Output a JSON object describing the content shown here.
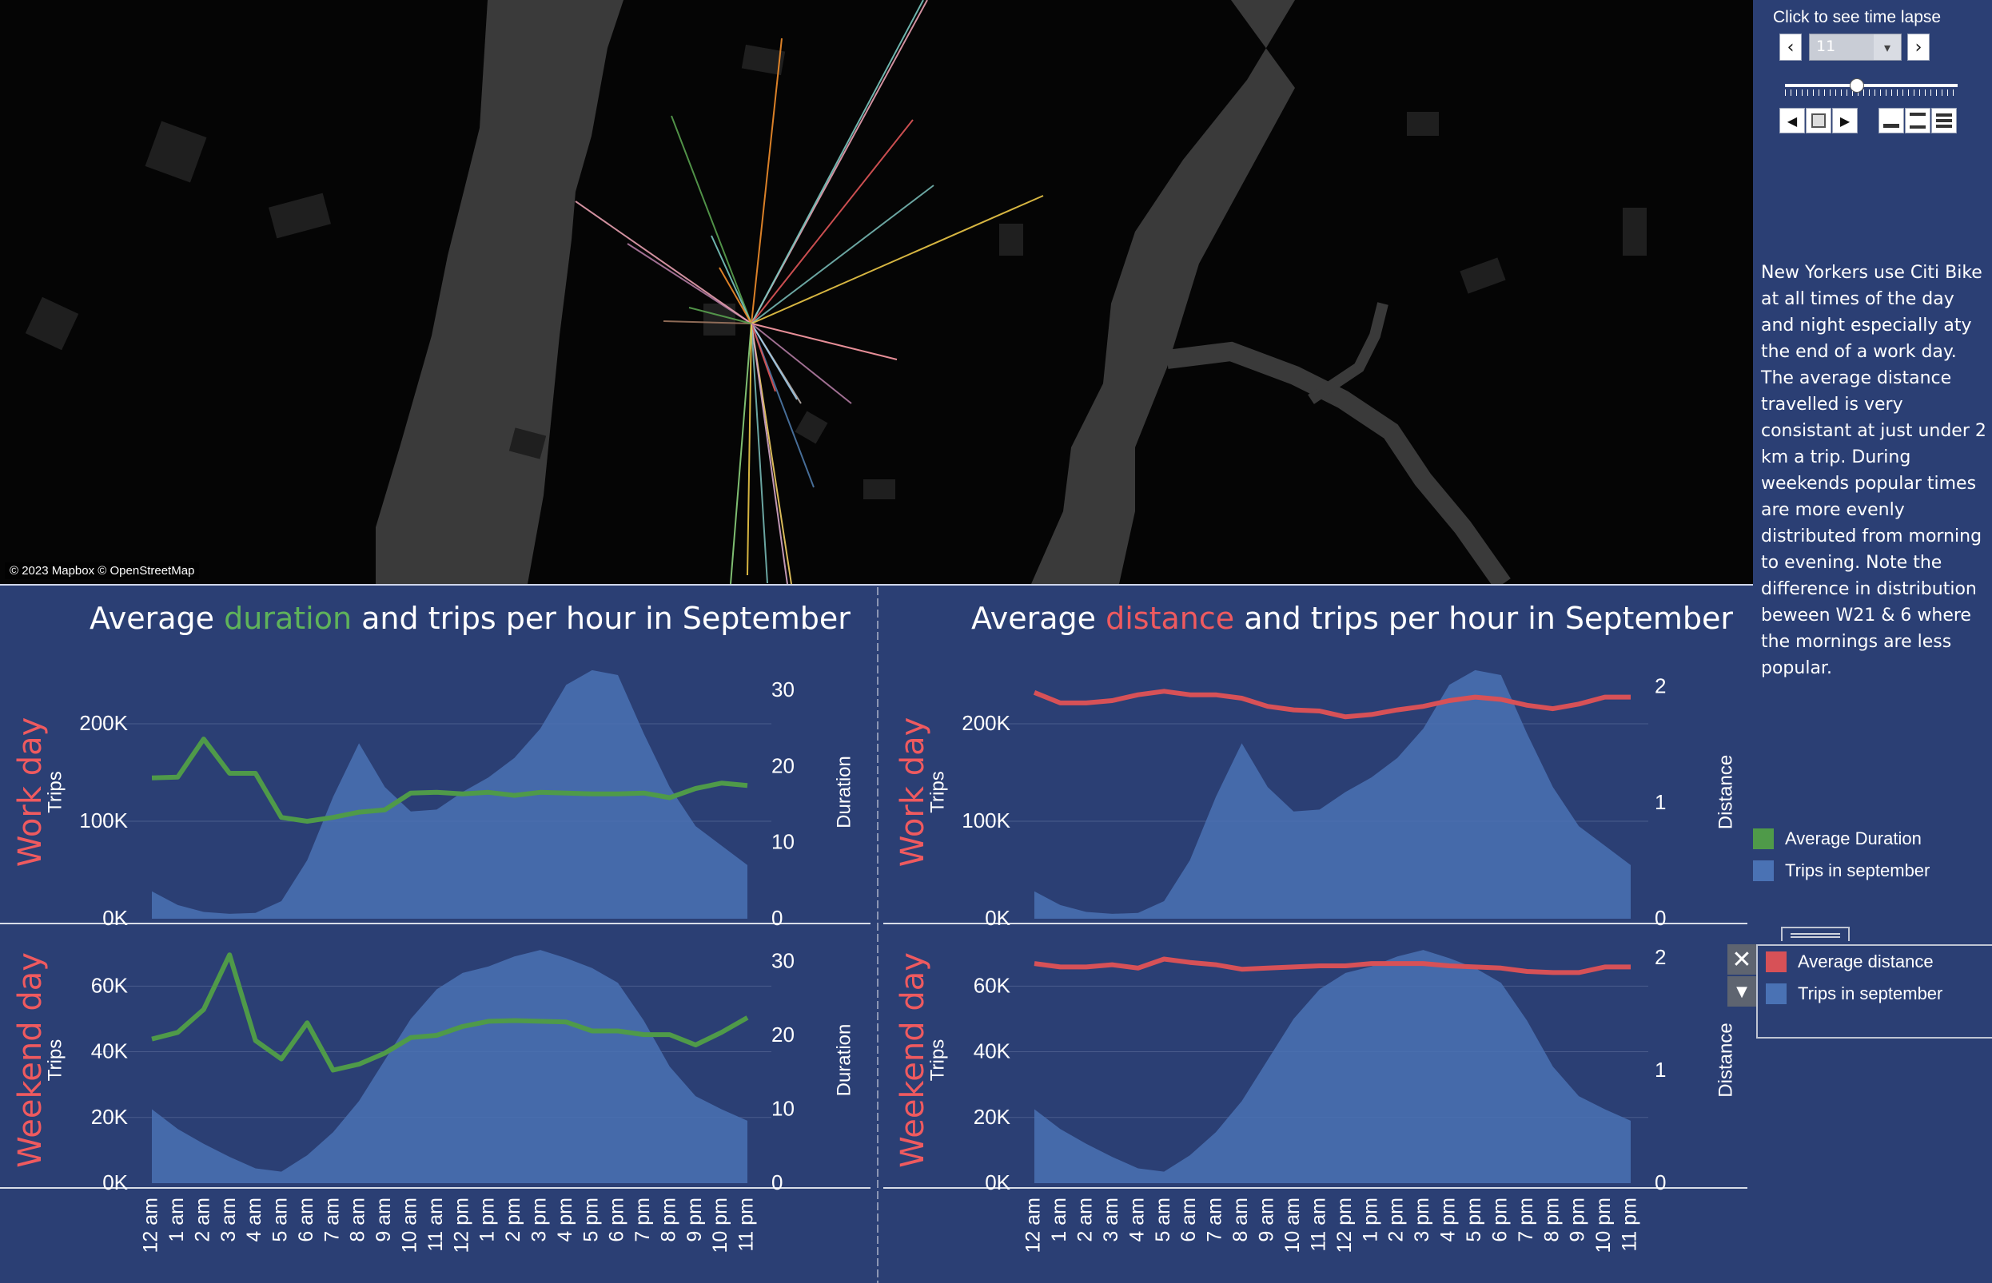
{
  "map": {
    "credit": "© 2023 Mapbox © OpenStreetMap",
    "line_colors": [
      "#e8a0b0",
      "#7ac8c0",
      "#f28e2b",
      "#59a14f",
      "#e15759",
      "#76b7b2",
      "#edc948",
      "#b07aa1",
      "#ff9da7",
      "#9c755f",
      "#bab0ac",
      "#4e79a7",
      "#a0cbe8",
      "#8cd17d",
      "#f1ce63",
      "#d4a6c8"
    ]
  },
  "timelapse": {
    "title": "Click to see time lapse",
    "selected_value": "11",
    "prev_icon": "chevron-left-icon",
    "next_icon": "chevron-right-icon",
    "slider_fraction": 0.5,
    "controls": [
      "step-back-icon",
      "stop-icon",
      "play-icon",
      "speed-slow-icon",
      "speed-medium-icon",
      "speed-fast-icon"
    ]
  },
  "story_text": "New Yorkers use Citi Bike at all times of the day and night especially aty the end of a work day. The average distance travelled is very consistant at just under 2 km a trip. During weekends popular times are more evenly distributed from morning to evening. Note the difference in distribution beween W21 & 6 where the mornings are less popular.",
  "legend_duration": {
    "items": [
      {
        "label": "Average Duration",
        "color": "#4f9a49"
      },
      {
        "label": "Trips in september",
        "color": "#4a72b4"
      }
    ]
  },
  "legend_distance": {
    "items": [
      {
        "label": "Average distance",
        "color": "#d75157"
      },
      {
        "label": "Trips in september",
        "color": "#4a72b4"
      }
    ],
    "close_icon": "close-icon",
    "menu_icon": "caret-down-icon"
  },
  "panels": {
    "left": {
      "title_pre": "Average ",
      "title_hl": "duration",
      "title_post": " and trips per hour in September"
    },
    "right": {
      "title_pre": "Average ",
      "title_hl": "distance",
      "title_post": " and trips per hour in September"
    }
  },
  "chart_data": [
    {
      "type": "area",
      "title": "Average duration and trips per hour in September",
      "row_label": "Work day",
      "ylabel": "Trips",
      "y2label": "Duration",
      "x": [
        "12 am",
        "1 am",
        "2 am",
        "3 am",
        "4 am",
        "5 am",
        "6 am",
        "7 am",
        "8 am",
        "9 am",
        "10 am",
        "11 am",
        "12 pm",
        "1 pm",
        "2 pm",
        "3 pm",
        "4 pm",
        "5 pm",
        "6 pm",
        "7 pm",
        "8 pm",
        "9 pm",
        "10 pm",
        "11 pm"
      ],
      "ylim": [
        0,
        250000
      ],
      "yticks": [
        "0K",
        "100K",
        "200K"
      ],
      "y2lim": [
        0,
        32
      ],
      "y2ticks": [
        "0",
        "10",
        "20",
        "30"
      ],
      "series": [
        {
          "name": "Trips in september",
          "color": "#4a72b4",
          "values": [
            28000,
            14000,
            7000,
            5000,
            6000,
            18000,
            60000,
            125000,
            180000,
            135000,
            110000,
            112000,
            130000,
            145000,
            165000,
            195000,
            240000,
            255000,
            250000,
            190000,
            135000,
            95000,
            75000,
            55000
          ]
        },
        {
          "name": "Average Duration",
          "color": "#4f9a49",
          "values": [
            18.5,
            18.6,
            23.6,
            19.1,
            19.1,
            13.3,
            12.8,
            13.3,
            14.0,
            14.3,
            16.5,
            16.6,
            16.4,
            16.6,
            16.2,
            16.6,
            16.5,
            16.4,
            16.4,
            16.5,
            15.9,
            17.1,
            17.8,
            17.5
          ]
        }
      ]
    },
    {
      "type": "area",
      "title": "Average duration and trips per hour in September",
      "row_label": "Weekend day",
      "ylabel": "Trips",
      "y2label": "Duration",
      "x": [
        "12 am",
        "1 am",
        "2 am",
        "3 am",
        "4 am",
        "5 am",
        "6 am",
        "7 am",
        "8 am",
        "9 am",
        "10 am",
        "11 am",
        "12 pm",
        "1 pm",
        "2 pm",
        "3 pm",
        "4 pm",
        "5 pm",
        "6 pm",
        "7 pm",
        "8 pm",
        "9 pm",
        "10 pm",
        "11 pm"
      ],
      "ylim": [
        0,
        72000
      ],
      "yticks": [
        "0K",
        "20K",
        "40K",
        "60K"
      ],
      "y2lim": [
        0,
        32
      ],
      "y2ticks": [
        "0",
        "10",
        "20",
        "30"
      ],
      "series": [
        {
          "name": "Trips in september",
          "color": "#4a72b4",
          "values": [
            22500,
            16500,
            12000,
            8000,
            4500,
            3500,
            8500,
            15500,
            25000,
            37500,
            50000,
            59000,
            64000,
            66000,
            69000,
            71000,
            68500,
            65500,
            61000,
            49500,
            35500,
            26500,
            22500,
            19000
          ]
        },
        {
          "name": "Average Duration",
          "color": "#4f9a49",
          "values": [
            19.5,
            20.4,
            23.5,
            30.9,
            19.3,
            16.8,
            21.7,
            15.3,
            16.1,
            17.6,
            19.7,
            20.0,
            21.2,
            21.9,
            22.0,
            21.9,
            21.8,
            20.6,
            20.6,
            20.1,
            20.1,
            18.7,
            20.4,
            22.4
          ]
        }
      ]
    },
    {
      "type": "area",
      "title": "Average distance and trips per hour in September",
      "row_label": "Work day",
      "ylabel": "Trips",
      "y2label": "Distance",
      "x": [
        "12 am",
        "1 am",
        "2 am",
        "3 am",
        "4 am",
        "5 am",
        "6 am",
        "7 am",
        "8 am",
        "9 am",
        "10 am",
        "11 am",
        "12 pm",
        "1 pm",
        "2 pm",
        "3 pm",
        "4 pm",
        "5 pm",
        "6 pm",
        "7 pm",
        "8 pm",
        "9 pm",
        "10 pm",
        "11 pm"
      ],
      "ylim": [
        0,
        250000
      ],
      "yticks": [
        "0K",
        "100K",
        "200K"
      ],
      "y2lim": [
        0,
        2.1
      ],
      "y2ticks": [
        "0",
        "1",
        "2"
      ],
      "series": [
        {
          "name": "Trips in september",
          "color": "#4a72b4",
          "values": [
            28000,
            14000,
            7000,
            5000,
            6000,
            18000,
            60000,
            125000,
            180000,
            135000,
            110000,
            112000,
            130000,
            145000,
            165000,
            195000,
            240000,
            255000,
            250000,
            190000,
            135000,
            95000,
            75000,
            55000
          ]
        },
        {
          "name": "Average distance",
          "color": "#d75157",
          "values": [
            1.95,
            1.86,
            1.86,
            1.88,
            1.93,
            1.96,
            1.93,
            1.93,
            1.9,
            1.83,
            1.8,
            1.79,
            1.74,
            1.76,
            1.8,
            1.83,
            1.88,
            1.91,
            1.89,
            1.84,
            1.81,
            1.85,
            1.91,
            1.91
          ]
        }
      ]
    },
    {
      "type": "area",
      "title": "Average distance and trips per hour in September",
      "row_label": "Weekend day",
      "ylabel": "Trips",
      "y2label": "Distance",
      "x": [
        "12 am",
        "1 am",
        "2 am",
        "3 am",
        "4 am",
        "5 am",
        "6 am",
        "7 am",
        "8 am",
        "9 am",
        "10 am",
        "11 am",
        "12 pm",
        "1 pm",
        "2 pm",
        "3 pm",
        "4 pm",
        "5 pm",
        "6 pm",
        "7 pm",
        "8 pm",
        "9 pm",
        "10 pm",
        "11 pm"
      ],
      "ylim": [
        0,
        72000
      ],
      "yticks": [
        "0K",
        "20K",
        "40K",
        "60K"
      ],
      "y2lim": [
        0,
        2.1
      ],
      "y2ticks": [
        "0",
        "1",
        "2"
      ],
      "series": [
        {
          "name": "Trips in september",
          "color": "#4a72b4",
          "values": [
            22500,
            16500,
            12000,
            8000,
            4500,
            3500,
            8500,
            15500,
            25000,
            37500,
            50000,
            59000,
            64000,
            66000,
            69000,
            71000,
            68500,
            65500,
            61000,
            49500,
            35500,
            26500,
            22500,
            19000
          ]
        },
        {
          "name": "Average distance",
          "color": "#d75157",
          "values": [
            1.95,
            1.92,
            1.92,
            1.94,
            1.91,
            1.99,
            1.96,
            1.94,
            1.9,
            1.91,
            1.92,
            1.93,
            1.93,
            1.95,
            1.95,
            1.95,
            1.93,
            1.92,
            1.91,
            1.88,
            1.87,
            1.87,
            1.92,
            1.92
          ]
        }
      ]
    }
  ]
}
